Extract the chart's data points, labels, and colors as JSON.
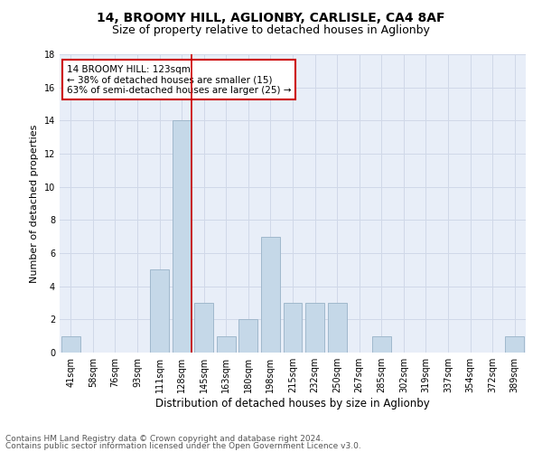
{
  "title1": "14, BROOMY HILL, AGLIONBY, CARLISLE, CA4 8AF",
  "title2": "Size of property relative to detached houses in Aglionby",
  "xlabel": "Distribution of detached houses by size in Aglionby",
  "ylabel": "Number of detached properties",
  "categories": [
    "41sqm",
    "58sqm",
    "76sqm",
    "93sqm",
    "111sqm",
    "128sqm",
    "145sqm",
    "163sqm",
    "180sqm",
    "198sqm",
    "215sqm",
    "232sqm",
    "250sqm",
    "267sqm",
    "285sqm",
    "302sqm",
    "319sqm",
    "337sqm",
    "354sqm",
    "372sqm",
    "389sqm"
  ],
  "values": [
    1,
    0,
    0,
    0,
    5,
    14,
    3,
    1,
    2,
    7,
    3,
    3,
    3,
    0,
    1,
    0,
    0,
    0,
    0,
    0,
    1
  ],
  "bar_color": "#c5d8e8",
  "bar_edge_color": "#a0b8cc",
  "vline_color": "#cc0000",
  "annotation_text_line1": "14 BROOMY HILL: 123sqm",
  "annotation_text_line2": "← 38% of detached houses are smaller (15)",
  "annotation_text_line3": "63% of semi-detached houses are larger (25) →",
  "annotation_box_color": "#ffffff",
  "annotation_border_color": "#cc0000",
  "grid_color": "#d0d8e8",
  "background_color": "#e8eef8",
  "ylim": [
    0,
    18
  ],
  "yticks": [
    0,
    2,
    4,
    6,
    8,
    10,
    12,
    14,
    16,
    18
  ],
  "footer1": "Contains HM Land Registry data © Crown copyright and database right 2024.",
  "footer2": "Contains public sector information licensed under the Open Government Licence v3.0.",
  "title1_fontsize": 10,
  "title2_fontsize": 9,
  "xlabel_fontsize": 8.5,
  "ylabel_fontsize": 8,
  "tick_fontsize": 7,
  "annot_fontsize": 7.5,
  "footer_fontsize": 6.5
}
